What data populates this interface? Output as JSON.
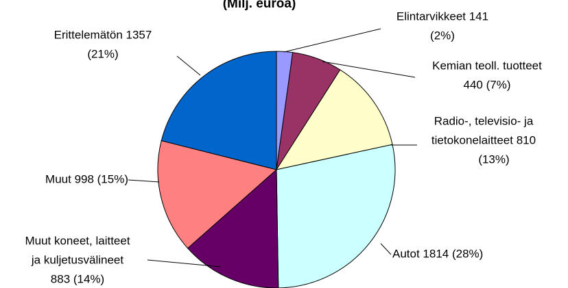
{
  "chart_data": {
    "type": "pie",
    "title": "(Milj. euroa)",
    "categories": [
      "Elintarvikkeet",
      "Kemian teoll. tuotteet",
      "Radio-, televisio- ja tietokonelaitteet",
      "Autot",
      "Muut koneet, laitteet ja kuljetusvälineet",
      "Muut",
      "Erittelemätön"
    ],
    "values": [
      141,
      440,
      810,
      1814,
      883,
      998,
      1357
    ],
    "value_labels": [
      [
        "Elintarvikkeet 141",
        "(2%)"
      ],
      [
        "Kemian teoll. tuotteet",
        "440 (7%)"
      ],
      [
        "Radio-, televisio- ja",
        "tietokonelaitteet 810",
        "(13%)"
      ],
      [
        "Autot 1814 (28%)"
      ],
      [
        "Muut koneet, laitteet",
        "ja kuljetusvälineet",
        "883 (14%)"
      ],
      [
        "Muut 998 (15%)"
      ],
      [
        "Erittelemätön 1357",
        "(21%)"
      ]
    ],
    "colors": [
      "#9999ff",
      "#993366",
      "#ffffcc",
      "#ccffff",
      "#660066",
      "#ff8080",
      "#0066cc"
    ]
  }
}
